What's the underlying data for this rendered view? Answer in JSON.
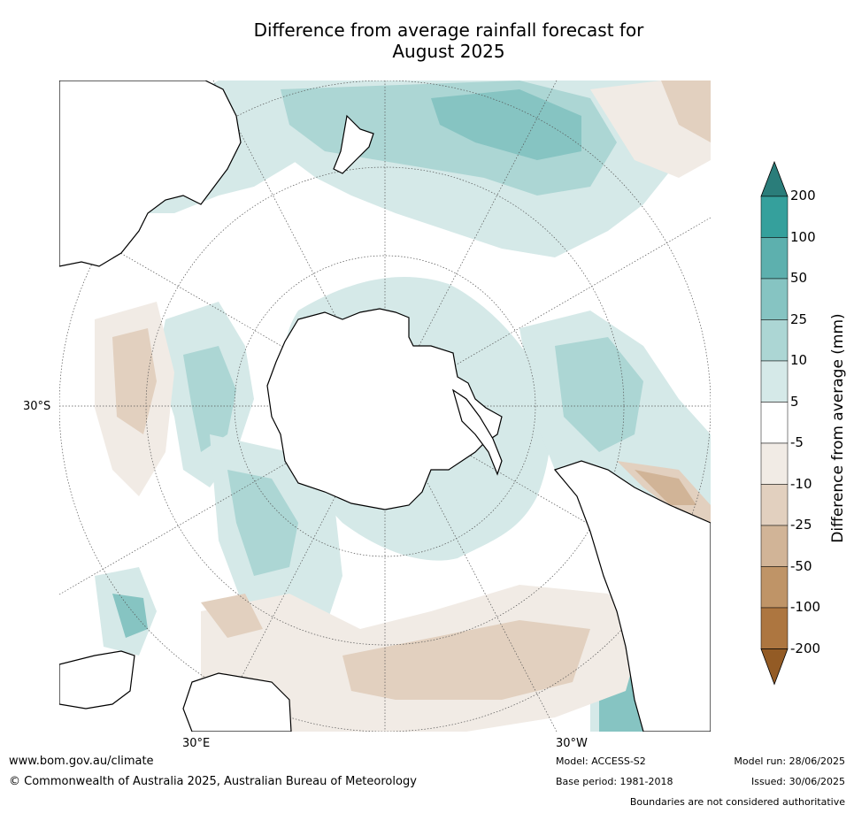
{
  "title_line1": "Difference from average rainfall forecast for",
  "title_line2": "August 2025",
  "map": {
    "lat_label": "30°S",
    "lon_label_east": "30°E",
    "lon_label_west": "30°W",
    "ocean_color": "#ffffff",
    "coast_color": "#000000"
  },
  "colorbar": {
    "title": "Difference from average (mm)",
    "labels": [
      "200",
      "100",
      "50",
      "25",
      "10",
      "5",
      "-5",
      "-10",
      "-25",
      "-50",
      "-100",
      "-200"
    ],
    "colors": [
      "#2a7d7a",
      "#35a09c",
      "#5db0ae",
      "#86c4c2",
      "#acd6d4",
      "#d5e9e8",
      "#ffffff",
      "#f1ebe5",
      "#e2d0bf",
      "#d1b497",
      "#bf9467",
      "#ad7640",
      "#935b25"
    ]
  },
  "footer": {
    "website": "www.bom.gov.au/climate",
    "copyright": "© Commonwealth of Australia 2025, Australian Bureau of Meteorology",
    "model": "Model: ACCESS-S2",
    "base_period": "Base period: 1981-2018",
    "model_run": "Model run: 28/06/2025",
    "issued": "Issued: 30/06/2025",
    "disclaimer": "Boundaries are not considered authoritative"
  }
}
